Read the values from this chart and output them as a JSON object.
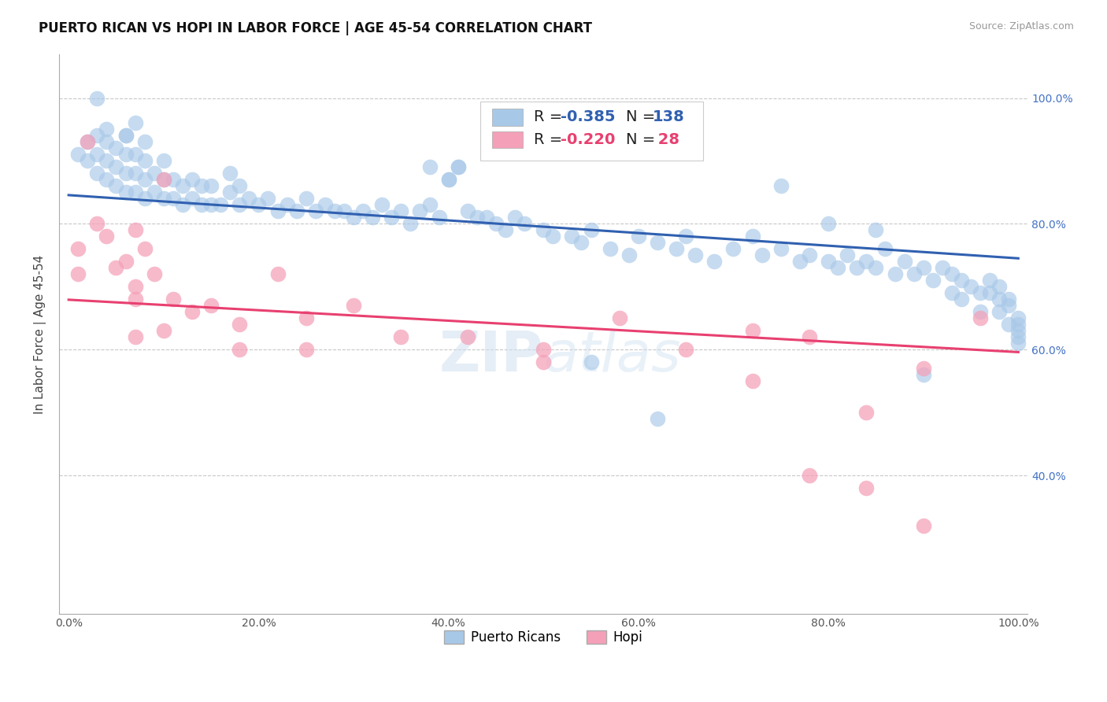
{
  "title": "PUERTO RICAN VS HOPI IN LABOR FORCE | AGE 45-54 CORRELATION CHART",
  "source": "Source: ZipAtlas.com",
  "ylabel": "In Labor Force | Age 45-54",
  "xlim": [
    -0.01,
    1.01
  ],
  "ylim": [
    0.18,
    1.07
  ],
  "blue_R": -0.385,
  "blue_N": 138,
  "pink_R": -0.22,
  "pink_N": 28,
  "blue_color": "#A8C8E8",
  "pink_color": "#F4A0B8",
  "blue_line_color": "#3060B0",
  "pink_line_color": "#E84070",
  "legend_blue_label": "Puerto Ricans",
  "legend_pink_label": "Hopi",
  "watermark": "ZIPatlas",
  "yticks": [
    0.4,
    0.6,
    0.8,
    1.0
  ],
  "ytick_labels": [
    "40.0%",
    "60.0%",
    "80.0%",
    "100.0%"
  ],
  "xticks": [
    0.0,
    0.2,
    0.4,
    0.6,
    0.8,
    1.0
  ],
  "xtick_labels": [
    "0.0%",
    "20.0%",
    "40.0%",
    "60.0%",
    "80.0%",
    "100.0%"
  ],
  "blue_scatter_x": [
    0.01,
    0.02,
    0.02,
    0.03,
    0.03,
    0.03,
    0.04,
    0.04,
    0.04,
    0.05,
    0.05,
    0.05,
    0.06,
    0.06,
    0.06,
    0.06,
    0.07,
    0.07,
    0.07,
    0.08,
    0.08,
    0.08,
    0.08,
    0.09,
    0.09,
    0.1,
    0.1,
    0.1,
    0.11,
    0.11,
    0.12,
    0.12,
    0.13,
    0.13,
    0.14,
    0.14,
    0.15,
    0.15,
    0.16,
    0.17,
    0.17,
    0.18,
    0.18,
    0.19,
    0.2,
    0.21,
    0.22,
    0.23,
    0.24,
    0.25,
    0.26,
    0.27,
    0.28,
    0.29,
    0.3,
    0.31,
    0.32,
    0.33,
    0.34,
    0.35,
    0.36,
    0.37,
    0.38,
    0.39,
    0.4,
    0.41,
    0.42,
    0.43,
    0.44,
    0.45,
    0.46,
    0.47,
    0.48,
    0.5,
    0.51,
    0.53,
    0.54,
    0.55,
    0.57,
    0.59,
    0.6,
    0.62,
    0.64,
    0.65,
    0.66,
    0.68,
    0.7,
    0.72,
    0.73,
    0.75,
    0.77,
    0.78,
    0.8,
    0.81,
    0.82,
    0.83,
    0.84,
    0.85,
    0.86,
    0.87,
    0.88,
    0.89,
    0.9,
    0.91,
    0.92,
    0.93,
    0.94,
    0.95,
    0.96,
    0.97,
    0.97,
    0.98,
    0.98,
    0.99,
    0.99,
    1.0,
    1.0,
    1.0,
    1.0,
    1.0,
    0.03,
    0.04,
    0.06,
    0.07,
    0.38,
    0.4,
    0.41,
    0.55,
    0.62,
    0.75,
    0.8,
    0.85,
    0.9,
    0.93,
    0.94,
    0.96,
    0.98,
    0.99
  ],
  "blue_scatter_y": [
    0.91,
    0.9,
    0.93,
    0.88,
    0.91,
    0.94,
    0.87,
    0.9,
    0.93,
    0.86,
    0.89,
    0.92,
    0.85,
    0.88,
    0.91,
    0.94,
    0.85,
    0.88,
    0.91,
    0.84,
    0.87,
    0.9,
    0.93,
    0.85,
    0.88,
    0.84,
    0.87,
    0.9,
    0.84,
    0.87,
    0.83,
    0.86,
    0.84,
    0.87,
    0.83,
    0.86,
    0.83,
    0.86,
    0.83,
    0.85,
    0.88,
    0.83,
    0.86,
    0.84,
    0.83,
    0.84,
    0.82,
    0.83,
    0.82,
    0.84,
    0.82,
    0.83,
    0.82,
    0.82,
    0.81,
    0.82,
    0.81,
    0.83,
    0.81,
    0.82,
    0.8,
    0.82,
    0.83,
    0.81,
    0.87,
    0.89,
    0.82,
    0.81,
    0.81,
    0.8,
    0.79,
    0.81,
    0.8,
    0.79,
    0.78,
    0.78,
    0.77,
    0.79,
    0.76,
    0.75,
    0.78,
    0.77,
    0.76,
    0.78,
    0.75,
    0.74,
    0.76,
    0.78,
    0.75,
    0.76,
    0.74,
    0.75,
    0.74,
    0.73,
    0.75,
    0.73,
    0.74,
    0.73,
    0.76,
    0.72,
    0.74,
    0.72,
    0.73,
    0.71,
    0.73,
    0.72,
    0.71,
    0.7,
    0.69,
    0.71,
    0.69,
    0.68,
    0.7,
    0.67,
    0.68,
    0.65,
    0.64,
    0.62,
    0.63,
    0.61,
    1.0,
    0.95,
    0.94,
    0.96,
    0.89,
    0.87,
    0.89,
    0.58,
    0.49,
    0.86,
    0.8,
    0.79,
    0.56,
    0.69,
    0.68,
    0.66,
    0.66,
    0.64
  ],
  "pink_scatter_x": [
    0.01,
    0.02,
    0.03,
    0.04,
    0.05,
    0.06,
    0.07,
    0.07,
    0.08,
    0.09,
    0.1,
    0.11,
    0.13,
    0.15,
    0.18,
    0.22,
    0.25,
    0.3,
    0.35,
    0.42,
    0.5,
    0.58,
    0.65,
    0.72,
    0.78,
    0.84,
    0.9,
    0.96
  ],
  "pink_scatter_y": [
    0.76,
    0.93,
    0.8,
    0.78,
    0.73,
    0.74,
    0.7,
    0.79,
    0.76,
    0.72,
    0.87,
    0.68,
    0.66,
    0.67,
    0.64,
    0.72,
    0.65,
    0.67,
    0.62,
    0.62,
    0.6,
    0.65,
    0.6,
    0.63,
    0.62,
    0.5,
    0.57,
    0.65
  ],
  "pink_extra_x": [
    0.01,
    0.07,
    0.07,
    0.1,
    0.18,
    0.25,
    0.5,
    0.72,
    0.78,
    0.84,
    0.9
  ],
  "pink_extra_y": [
    0.72,
    0.68,
    0.62,
    0.63,
    0.6,
    0.6,
    0.58,
    0.55,
    0.4,
    0.38,
    0.32
  ],
  "background_color": "#ffffff",
  "grid_color": "#c8c8c8",
  "title_fontsize": 12,
  "axis_label_fontsize": 11,
  "tick_fontsize": 10
}
